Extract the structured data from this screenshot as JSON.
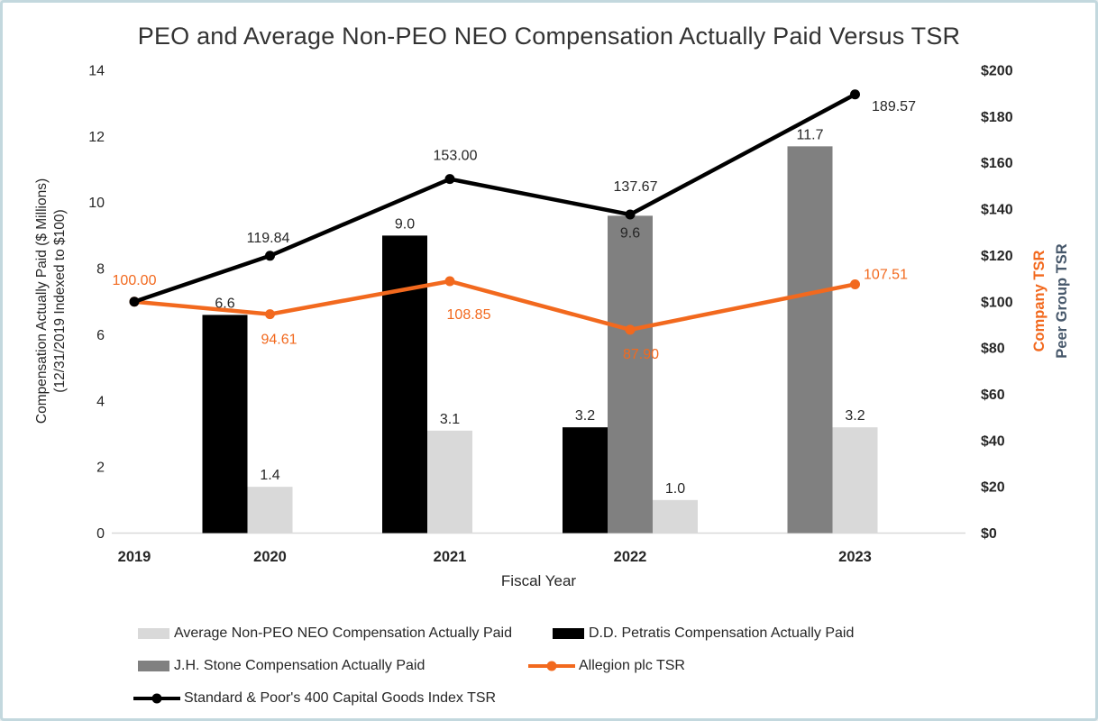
{
  "colors": {
    "black": "#000000",
    "gray": "#808080",
    "light_gray": "#d9d9d9",
    "orange": "#f2691e",
    "slate": "#47586b",
    "axis_line": "#d9d9d9",
    "text_dark": "#262626",
    "border": "#c3d8de"
  },
  "chart_data": {
    "type": "combo-bar-line",
    "title": "PEO and Average Non-PEO NEO Compensation Actually Paid Versus TSR",
    "x": {
      "label": "Fiscal Year",
      "categories": [
        "2019",
        "2020",
        "2021",
        "2022",
        "2023"
      ]
    },
    "left_axis": {
      "title_line1": "Compensation Actually Paid ($ Millions)",
      "title_line2": "(12/31/2019 Indexed to $100)",
      "ticks": [
        0,
        2,
        4,
        6,
        8,
        10,
        12,
        14
      ],
      "range": [
        0,
        14
      ]
    },
    "right_axis": {
      "titles": [
        {
          "text": "Company TSR",
          "color": "orange"
        },
        {
          "text": "Peer Group TSR",
          "color": "slate"
        }
      ],
      "tick_labels": [
        "$0",
        "$20",
        "$40",
        "$60",
        "$80",
        "$100",
        "$120",
        "$140",
        "$160",
        "$180",
        "$200"
      ],
      "range": [
        0,
        200
      ]
    },
    "bar_series": [
      {
        "name": "D.D. Petratis Compensation Actually Paid",
        "color": "black",
        "values": [
          null,
          6.6,
          9.0,
          3.2,
          null
        ],
        "labels": [
          null,
          "6.6",
          "9.0",
          "3.2",
          null
        ]
      },
      {
        "name": "J.H. Stone Compensation Actually Paid",
        "color": "gray",
        "values": [
          null,
          null,
          null,
          9.6,
          11.7
        ],
        "labels": [
          null,
          null,
          null,
          "9.6",
          "11.7"
        ]
      },
      {
        "name": "Average Non-PEO NEO Compensation Actually Paid",
        "color": "light_gray",
        "values": [
          null,
          1.4,
          3.1,
          1.0,
          3.2
        ],
        "labels": [
          null,
          "1.4",
          "3.1",
          "1.0",
          "3.2"
        ]
      }
    ],
    "line_series": [
      {
        "name": "Allegion plc TSR",
        "color": "orange",
        "values": [
          100.0,
          94.61,
          108.85,
          87.9,
          107.51
        ],
        "labels": [
          "100.00",
          "94.61",
          "108.85",
          "87.90",
          "107.51"
        ]
      },
      {
        "name": "Standard & Poor's 400 Capital Goods Index TSR",
        "color": "black",
        "values": [
          100.0,
          119.84,
          153.0,
          137.67,
          189.57
        ],
        "labels": [
          null,
          "119.84",
          "153.00",
          "137.67",
          "189.57"
        ]
      }
    ],
    "legend": [
      {
        "label": "Average Non-PEO NEO Compensation Actually Paid",
        "marker": "swatch",
        "color": "light_gray"
      },
      {
        "label": "D.D. Petratis Compensation Actually Paid",
        "marker": "swatch",
        "color": "black"
      },
      {
        "label": "J.H. Stone Compensation Actually Paid",
        "marker": "swatch",
        "color": "gray"
      },
      {
        "label": "Allegion plc TSR",
        "marker": "line",
        "color": "orange"
      },
      {
        "label": "Standard & Poor's 400 Capital Goods Index TSR",
        "marker": "line",
        "color": "black"
      }
    ]
  }
}
